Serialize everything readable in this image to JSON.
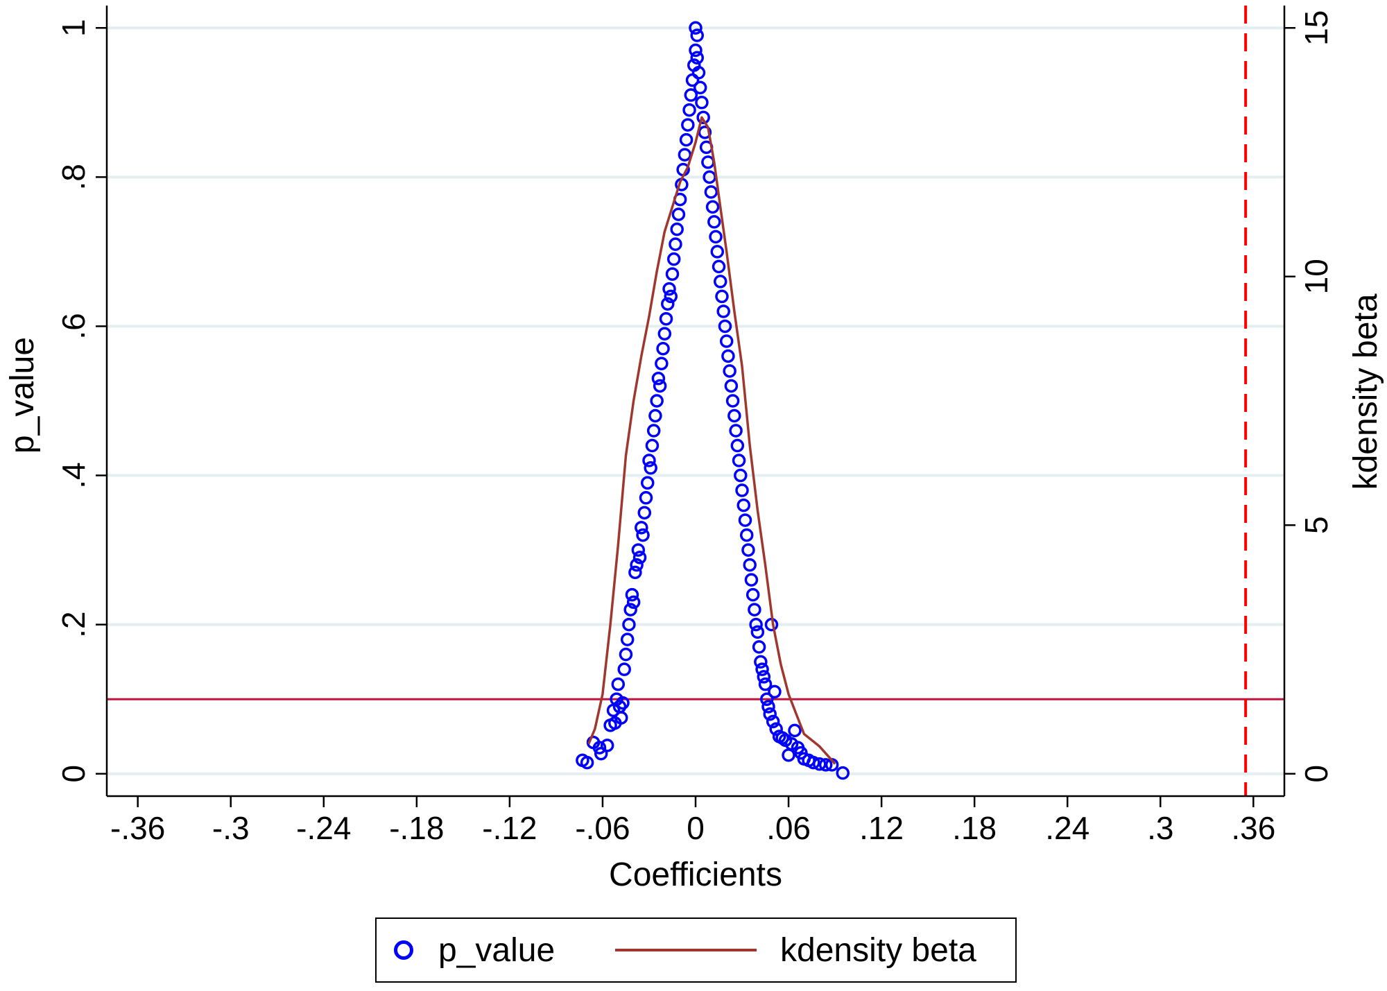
{
  "chart_data": {
    "type": "scatter",
    "xlabel": "Coefficients",
    "ylabel": "p_value",
    "y2label": "kdensity beta",
    "xlim": [
      -0.38,
      0.38
    ],
    "ylim": [
      -0.03,
      1.03
    ],
    "y2lim": [
      -0.45,
      15.45
    ],
    "x_ticks": [
      -0.36,
      -0.3,
      -0.24,
      -0.18,
      -0.12,
      -0.06,
      0,
      0.06,
      0.12,
      0.18,
      0.24,
      0.3,
      0.36
    ],
    "x_tick_labels": [
      "-.36",
      "-.3",
      "-.24",
      "-.18",
      "-.12",
      "-.06",
      "0",
      ".06",
      ".12",
      ".18",
      ".24",
      ".3",
      ".36"
    ],
    "y_ticks": [
      0,
      0.2,
      0.4,
      0.6,
      0.8,
      1
    ],
    "y_tick_labels": [
      "0",
      ".2",
      ".4",
      ".6",
      ".8",
      "1"
    ],
    "y2_ticks": [
      0,
      5,
      10,
      15
    ],
    "y2_tick_labels": [
      "0",
      "5",
      "10",
      "15"
    ],
    "grid": "horizontal",
    "reference_lines": [
      {
        "orientation": "horizontal",
        "axis": "y",
        "value": 0.1,
        "color": "#c0143c",
        "style": "solid"
      },
      {
        "orientation": "vertical",
        "axis": "x",
        "value": 0.355,
        "color": "#ff0000",
        "style": "dashed"
      }
    ],
    "series": [
      {
        "name": "p_value",
        "type": "scatter",
        "color": "#0000ff",
        "marker": "hollow-circle",
        "axis": "y",
        "points": [
          [
            -0.073,
            0.018
          ],
          [
            -0.07,
            0.015
          ],
          [
            -0.066,
            0.042
          ],
          [
            -0.062,
            0.035
          ],
          [
            -0.061,
            0.027
          ],
          [
            -0.057,
            0.038
          ],
          [
            -0.055,
            0.065
          ],
          [
            -0.053,
            0.085
          ],
          [
            -0.052,
            0.068
          ],
          [
            -0.051,
            0.1
          ],
          [
            -0.05,
            0.12
          ],
          [
            -0.049,
            0.09
          ],
          [
            -0.048,
            0.075
          ],
          [
            -0.047,
            0.095
          ],
          [
            -0.046,
            0.14
          ],
          [
            -0.045,
            0.16
          ],
          [
            -0.044,
            0.18
          ],
          [
            -0.043,
            0.2
          ],
          [
            -0.042,
            0.22
          ],
          [
            -0.041,
            0.24
          ],
          [
            -0.04,
            0.23
          ],
          [
            -0.039,
            0.27
          ],
          [
            -0.038,
            0.28
          ],
          [
            -0.037,
            0.3
          ],
          [
            -0.036,
            0.29
          ],
          [
            -0.035,
            0.33
          ],
          [
            -0.034,
            0.32
          ],
          [
            -0.033,
            0.35
          ],
          [
            -0.032,
            0.37
          ],
          [
            -0.031,
            0.39
          ],
          [
            -0.03,
            0.42
          ],
          [
            -0.029,
            0.41
          ],
          [
            -0.028,
            0.44
          ],
          [
            -0.027,
            0.46
          ],
          [
            -0.026,
            0.48
          ],
          [
            -0.025,
            0.5
          ],
          [
            -0.024,
            0.53
          ],
          [
            -0.023,
            0.52
          ],
          [
            -0.022,
            0.55
          ],
          [
            -0.021,
            0.57
          ],
          [
            -0.02,
            0.59
          ],
          [
            -0.019,
            0.61
          ],
          [
            -0.018,
            0.63
          ],
          [
            -0.017,
            0.65
          ],
          [
            -0.016,
            0.64
          ],
          [
            -0.015,
            0.67
          ],
          [
            -0.014,
            0.69
          ],
          [
            -0.013,
            0.71
          ],
          [
            -0.012,
            0.73
          ],
          [
            -0.011,
            0.75
          ],
          [
            -0.01,
            0.77
          ],
          [
            -0.009,
            0.79
          ],
          [
            -0.008,
            0.81
          ],
          [
            -0.007,
            0.83
          ],
          [
            -0.006,
            0.85
          ],
          [
            -0.005,
            0.87
          ],
          [
            -0.004,
            0.89
          ],
          [
            -0.003,
            0.91
          ],
          [
            -0.002,
            0.93
          ],
          [
            -0.001,
            0.95
          ],
          [
            0.0,
            0.97
          ],
          [
            0.0,
            1.0
          ],
          [
            0.001,
            0.99
          ],
          [
            0.001,
            0.96
          ],
          [
            0.002,
            0.94
          ],
          [
            0.003,
            0.92
          ],
          [
            0.004,
            0.9
          ],
          [
            0.005,
            0.88
          ],
          [
            0.006,
            0.86
          ],
          [
            0.007,
            0.84
          ],
          [
            0.008,
            0.82
          ],
          [
            0.009,
            0.8
          ],
          [
            0.01,
            0.78
          ],
          [
            0.011,
            0.76
          ],
          [
            0.012,
            0.74
          ],
          [
            0.013,
            0.72
          ],
          [
            0.014,
            0.7
          ],
          [
            0.015,
            0.68
          ],
          [
            0.016,
            0.66
          ],
          [
            0.017,
            0.64
          ],
          [
            0.018,
            0.62
          ],
          [
            0.019,
            0.6
          ],
          [
            0.02,
            0.58
          ],
          [
            0.021,
            0.56
          ],
          [
            0.022,
            0.54
          ],
          [
            0.023,
            0.52
          ],
          [
            0.024,
            0.5
          ],
          [
            0.025,
            0.48
          ],
          [
            0.026,
            0.46
          ],
          [
            0.027,
            0.44
          ],
          [
            0.028,
            0.42
          ],
          [
            0.029,
            0.4
          ],
          [
            0.03,
            0.38
          ],
          [
            0.031,
            0.36
          ],
          [
            0.032,
            0.34
          ],
          [
            0.033,
            0.32
          ],
          [
            0.034,
            0.3
          ],
          [
            0.035,
            0.28
          ],
          [
            0.036,
            0.26
          ],
          [
            0.037,
            0.24
          ],
          [
            0.038,
            0.22
          ],
          [
            0.039,
            0.2
          ],
          [
            0.04,
            0.19
          ],
          [
            0.041,
            0.17
          ],
          [
            0.042,
            0.15
          ],
          [
            0.043,
            0.14
          ],
          [
            0.044,
            0.13
          ],
          [
            0.045,
            0.12
          ],
          [
            0.046,
            0.1
          ],
          [
            0.047,
            0.09
          ],
          [
            0.048,
            0.08
          ],
          [
            0.049,
            0.2
          ],
          [
            0.05,
            0.07
          ],
          [
            0.051,
            0.11
          ],
          [
            0.052,
            0.06
          ],
          [
            0.054,
            0.05
          ],
          [
            0.056,
            0.048
          ],
          [
            0.058,
            0.045
          ],
          [
            0.06,
            0.025
          ],
          [
            0.062,
            0.04
          ],
          [
            0.064,
            0.058
          ],
          [
            0.066,
            0.035
          ],
          [
            0.068,
            0.028
          ],
          [
            0.07,
            0.02
          ],
          [
            0.073,
            0.018
          ],
          [
            0.076,
            0.015
          ],
          [
            0.08,
            0.013
          ],
          [
            0.084,
            0.012
          ],
          [
            0.088,
            0.012
          ],
          [
            0.095,
            0.001
          ]
        ]
      },
      {
        "name": "kdensity beta",
        "type": "line",
        "color": "#a0372f",
        "axis": "y2",
        "points": [
          [
            -0.069,
            0.6
          ],
          [
            -0.065,
            0.9
          ],
          [
            -0.06,
            1.6
          ],
          [
            -0.055,
            3.0
          ],
          [
            -0.05,
            4.6
          ],
          [
            -0.045,
            6.4
          ],
          [
            -0.04,
            7.5
          ],
          [
            -0.035,
            8.4
          ],
          [
            -0.03,
            9.2
          ],
          [
            -0.025,
            10.1
          ],
          [
            -0.02,
            10.9
          ],
          [
            -0.015,
            11.4
          ],
          [
            -0.01,
            11.9
          ],
          [
            -0.005,
            12.2
          ],
          [
            0.0,
            12.7
          ],
          [
            0.004,
            13.2
          ],
          [
            0.008,
            13.0
          ],
          [
            0.012,
            12.3
          ],
          [
            0.016,
            11.4
          ],
          [
            0.02,
            10.5
          ],
          [
            0.025,
            9.3
          ],
          [
            0.03,
            8.2
          ],
          [
            0.035,
            6.6
          ],
          [
            0.04,
            5.3
          ],
          [
            0.045,
            4.2
          ],
          [
            0.05,
            3.0
          ],
          [
            0.055,
            2.2
          ],
          [
            0.06,
            1.6
          ],
          [
            0.065,
            1.2
          ],
          [
            0.07,
            0.8
          ],
          [
            0.08,
            0.55
          ],
          [
            0.09,
            0.2
          ]
        ]
      }
    ],
    "legend": {
      "position": "bottom",
      "entries": [
        "p_value",
        "kdensity beta"
      ]
    }
  }
}
